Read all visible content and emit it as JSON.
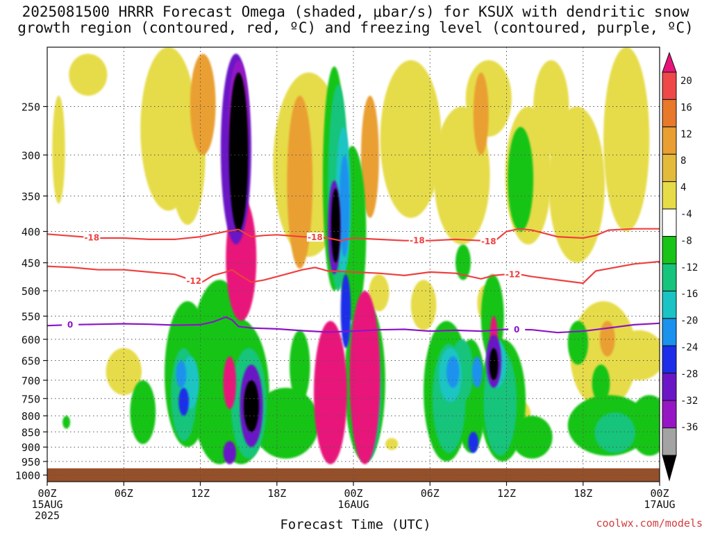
{
  "title_line1": "2025081500 HRRR Forecast Omega (shaded, μbar/s) for KSUX with dendritic snow",
  "title_line2": "growth region (contoured, red, ºC) and freezing level (contoured, purple, ºC)",
  "xlabel": "Forecast Time (UTC)",
  "credit": "coolwx.com/models",
  "chart_data": {
    "type": "heatmap",
    "x_axis": {
      "ticks": [
        {
          "hour": 0,
          "label": [
            "00Z",
            "15AUG",
            "2025"
          ]
        },
        {
          "hour": 6,
          "label": [
            "06Z"
          ]
        },
        {
          "hour": 12,
          "label": [
            "12Z"
          ]
        },
        {
          "hour": 18,
          "label": [
            "18Z"
          ]
        },
        {
          "hour": 24,
          "label": [
            "00Z",
            "16AUG"
          ]
        },
        {
          "hour": 30,
          "label": [
            "06Z"
          ]
        },
        {
          "hour": 36,
          "label": [
            "12Z"
          ]
        },
        {
          "hour": 42,
          "label": [
            "18Z"
          ]
        },
        {
          "hour": 48,
          "label": [
            "00Z",
            "17AUG"
          ]
        }
      ],
      "range_hours": [
        0,
        48
      ]
    },
    "y_axis": {
      "ticks": [
        250,
        300,
        350,
        400,
        450,
        500,
        550,
        600,
        650,
        700,
        750,
        800,
        850,
        900,
        950,
        1000
      ],
      "range_hPa": [
        200,
        1025
      ],
      "scale": "log-pressure"
    },
    "grid": true,
    "colorbar": {
      "labels": [
        "20",
        "16",
        "12",
        "8",
        "4",
        "-4",
        "-8",
        "-12",
        "-16",
        "-20",
        "-24",
        "-28",
        "-32",
        "-36"
      ],
      "colors": [
        "#e8147a",
        "#ee4848",
        "#e8782a",
        "#ea9f32",
        "#e4ba3a",
        "#e6dc48",
        "#ffffff",
        "#17c417",
        "#17c47c",
        "#1ac4c4",
        "#1a92ee",
        "#1c2eea",
        "#6a16c6",
        "#9616c6",
        "#a3a3a3",
        "#000000"
      ]
    },
    "ground": {
      "from_hPa": 975,
      "color": "#95502a"
    },
    "series": [
      {
        "name": "-18",
        "kind": "dgz-contour",
        "color": "#ef4040",
        "x": [
          0,
          2,
          4,
          6,
          8,
          10,
          12,
          13,
          14,
          15,
          16,
          17,
          18,
          20,
          22,
          23,
          24,
          26,
          28,
          30,
          32,
          34,
          35,
          36,
          37,
          38,
          40,
          42,
          43,
          44,
          46,
          48
        ],
        "y": [
          404,
          407,
          410,
          410,
          412,
          412,
          408,
          404,
          400,
          397,
          408,
          406,
          405,
          408,
          410,
          414,
          410,
          412,
          414,
          414,
          412,
          414,
          416,
          400,
          396,
          398,
          408,
          410,
          406,
          398,
          396,
          396
        ]
      },
      {
        "name": "-12",
        "kind": "dgz-contour",
        "color": "#ef4040",
        "x": [
          0,
          2,
          4,
          6,
          8,
          10,
          12,
          13,
          14,
          14.5,
          15,
          16,
          17,
          18,
          20,
          21,
          22,
          24,
          26,
          28,
          30,
          32,
          34,
          35,
          36,
          37,
          38,
          40,
          42,
          43,
          44,
          46,
          48
        ],
        "y": [
          456,
          458,
          462,
          462,
          466,
          470,
          486,
          472,
          466,
          462,
          470,
          484,
          480,
          474,
          462,
          458,
          464,
          466,
          468,
          472,
          466,
          468,
          478,
          472,
          470,
          470,
          474,
          480,
          486,
          464,
          460,
          452,
          448
        ]
      },
      {
        "name": "0",
        "kind": "freezing-level",
        "color": "#8c14c8",
        "x": [
          0,
          2,
          4,
          6,
          8,
          10,
          12,
          13,
          14,
          14.5,
          15,
          16,
          18,
          20,
          22,
          24,
          26,
          28,
          30,
          32,
          34,
          36,
          38,
          40,
          42,
          44,
          46,
          48
        ],
        "y": [
          570,
          568,
          567,
          566,
          567,
          569,
          568,
          562,
          552,
          558,
          572,
          575,
          577,
          581,
          584,
          582,
          579,
          578,
          582,
          580,
          582,
          578,
          579,
          585,
          582,
          575,
          568,
          565
        ]
      }
    ]
  }
}
